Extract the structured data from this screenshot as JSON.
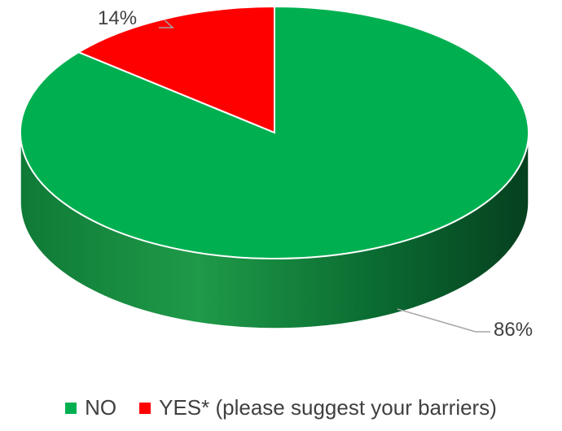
{
  "chart_data": {
    "type": "pie",
    "style": "3d",
    "slices": [
      {
        "label": "NO",
        "value": 86,
        "display": "86%",
        "color": "#00b050",
        "side_color": "#0a6b31"
      },
      {
        "label": "YES* (please suggest your barriers)",
        "value": 14,
        "display": "14%",
        "color": "#ff0000",
        "side_color": "#a00000"
      }
    ],
    "legend_position": "bottom"
  }
}
